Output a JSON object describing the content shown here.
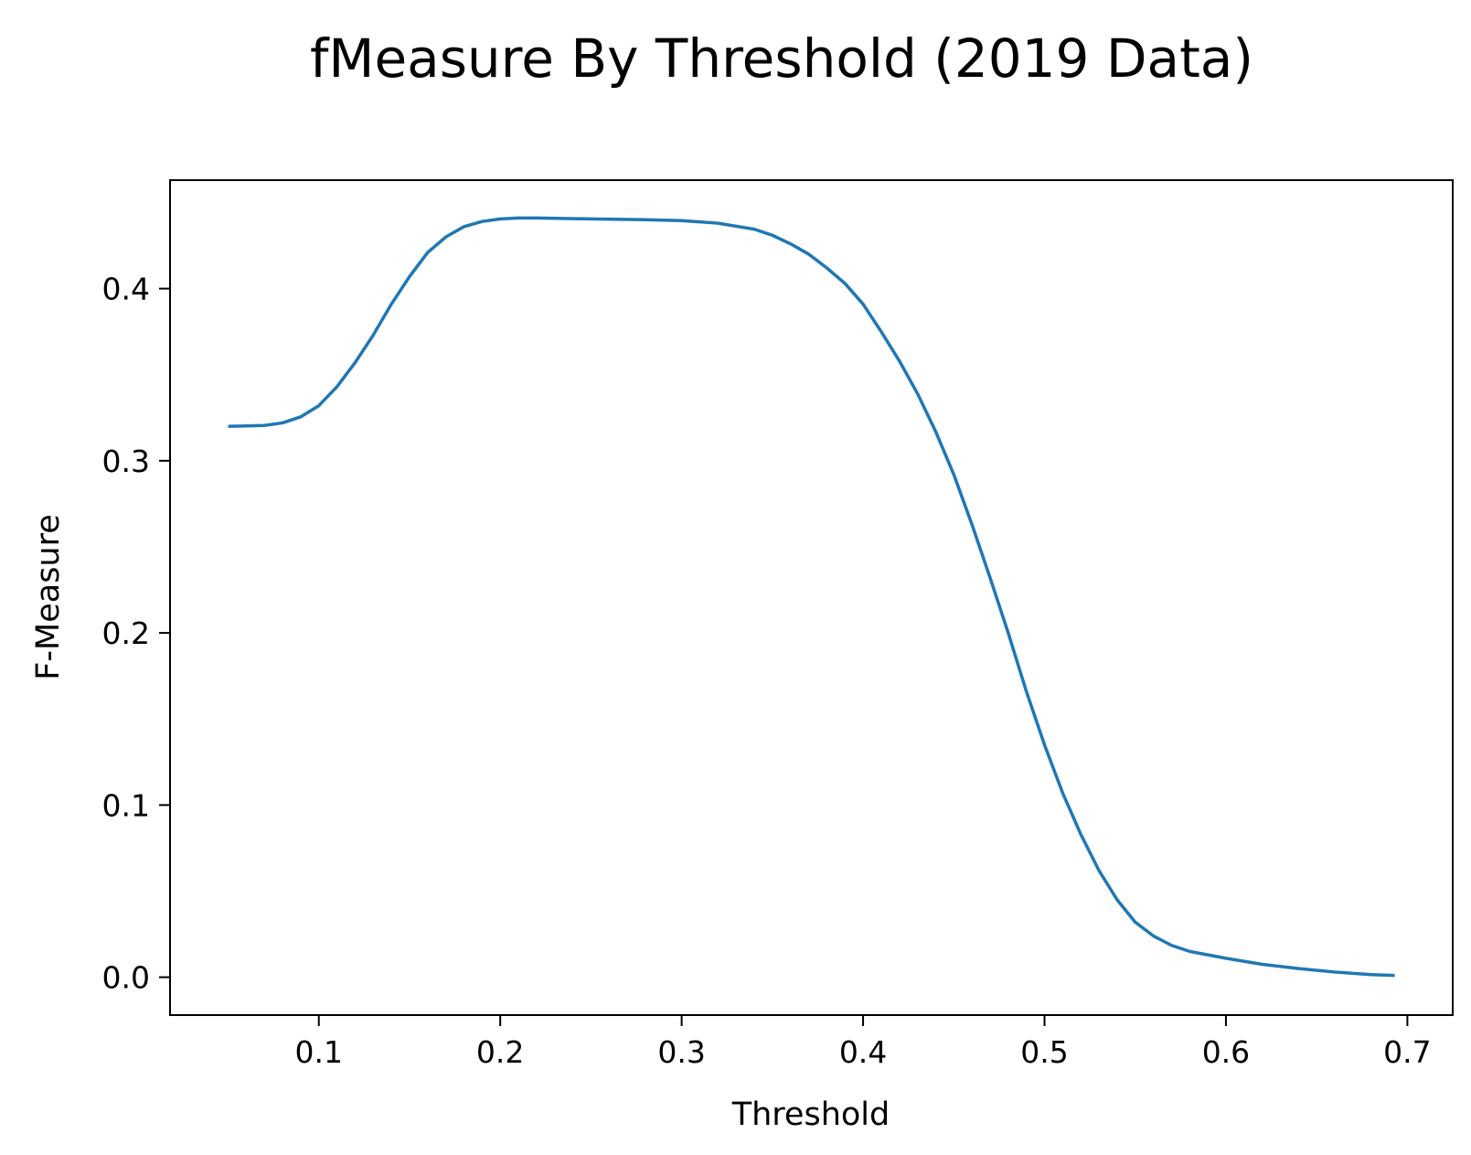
{
  "chart_data": {
    "type": "line",
    "title": "fMeasure By Threshold (2019 Data)",
    "xlabel": "Threshold",
    "ylabel": "F-Measure",
    "xlim": [
      0.018,
      0.725
    ],
    "ylim": [
      -0.022,
      0.463
    ],
    "xticks": [
      {
        "value": 0.1,
        "label": "0.1"
      },
      {
        "value": 0.2,
        "label": "0.2"
      },
      {
        "value": 0.3,
        "label": "0.3"
      },
      {
        "value": 0.4,
        "label": "0.4"
      },
      {
        "value": 0.5,
        "label": "0.5"
      },
      {
        "value": 0.6,
        "label": "0.6"
      },
      {
        "value": 0.7,
        "label": "0.7"
      }
    ],
    "yticks": [
      {
        "value": 0.0,
        "label": "0.0"
      },
      {
        "value": 0.1,
        "label": "0.1"
      },
      {
        "value": 0.2,
        "label": "0.2"
      },
      {
        "value": 0.3,
        "label": "0.3"
      },
      {
        "value": 0.4,
        "label": "0.4"
      }
    ],
    "grid": false,
    "line_color": "#1f77b4",
    "series": [
      {
        "x": [
          0.05,
          0.07,
          0.08,
          0.09,
          0.1,
          0.11,
          0.12,
          0.13,
          0.14,
          0.15,
          0.16,
          0.17,
          0.18,
          0.19,
          0.2,
          0.21,
          0.22,
          0.25,
          0.28,
          0.3,
          0.32,
          0.34,
          0.35,
          0.36,
          0.37,
          0.38,
          0.39,
          0.4,
          0.41,
          0.42,
          0.43,
          0.44,
          0.45,
          0.46,
          0.47,
          0.48,
          0.49,
          0.5,
          0.51,
          0.52,
          0.53,
          0.54,
          0.55,
          0.56,
          0.57,
          0.58,
          0.6,
          0.62,
          0.64,
          0.66,
          0.68,
          0.693
        ],
        "y": [
          0.32,
          0.3205,
          0.322,
          0.3255,
          0.332,
          0.343,
          0.357,
          0.373,
          0.391,
          0.407,
          0.421,
          0.43,
          0.436,
          0.439,
          0.4405,
          0.441,
          0.441,
          0.4405,
          0.44,
          0.4395,
          0.438,
          0.4345,
          0.431,
          0.426,
          0.42,
          0.412,
          0.403,
          0.391,
          0.375,
          0.358,
          0.339,
          0.317,
          0.292,
          0.263,
          0.232,
          0.2,
          0.166,
          0.135,
          0.107,
          0.083,
          0.062,
          0.045,
          0.032,
          0.024,
          0.0185,
          0.015,
          0.011,
          0.0075,
          0.005,
          0.003,
          0.0015,
          0.001
        ]
      }
    ]
  }
}
